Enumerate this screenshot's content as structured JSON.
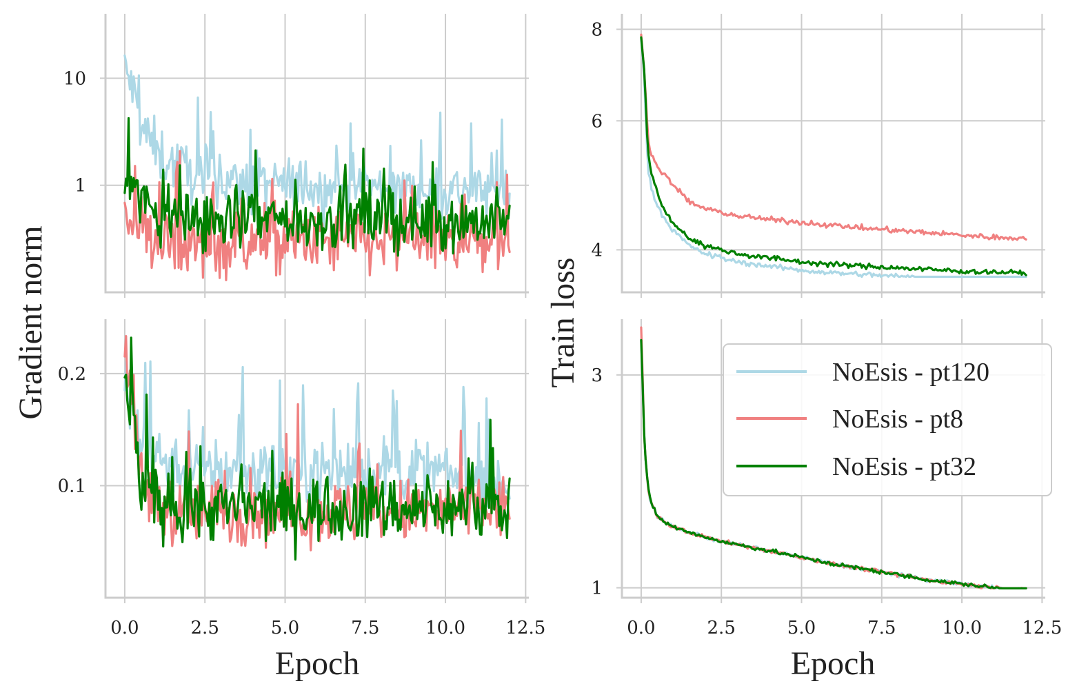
{
  "colors": {
    "pt120": "#add8e6",
    "pt8": "#f08080",
    "pt32": "#008000",
    "grid": "#cccccc",
    "text": "#222222"
  },
  "figure": {
    "ylabel_left": "Gradient norm",
    "ylabel_right": "Train loss",
    "xlabel_left": "Epoch",
    "xlabel_right": "Epoch"
  },
  "legend": {
    "position": "right-middle",
    "entries": [
      {
        "label": "NoEsis - pt120",
        "color": "#add8e6"
      },
      {
        "label": "NoEsis - pt8",
        "color": "#f08080"
      },
      {
        "label": "NoEsis - pt32",
        "color": "#008000"
      }
    ]
  },
  "chart_data": [
    {
      "id": "gradnorm_top",
      "type": "line",
      "title": "",
      "xlabel": "",
      "ylabel": "Gradient norm",
      "yscale": "log",
      "xlim": [
        -0.6,
        12.6
      ],
      "ylim": [
        0.1,
        40
      ],
      "xticks": [
        0,
        2.5,
        5,
        7.5,
        10,
        12.5
      ],
      "xtick_labels": [],
      "yticks": [
        1,
        10
      ],
      "ytick_labels": [
        "1",
        "10"
      ],
      "series": [
        {
          "name": "NoEsis - pt120",
          "color": "#add8e6",
          "x": [
            0,
            0.5,
            1,
            1.5,
            2,
            3,
            4,
            5,
            6,
            7,
            8,
            9,
            10,
            11,
            12
          ],
          "values": [
            12,
            3.5,
            2.0,
            1.6,
            1.3,
            1.1,
            1.0,
            1.0,
            0.95,
            0.95,
            0.95,
            0.9,
            0.9,
            0.9,
            0.9
          ]
        },
        {
          "name": "NoEsis - pt8",
          "color": "#f08080",
          "x": [
            0,
            0.5,
            1,
            1.5,
            2,
            3,
            4,
            5,
            6,
            7,
            8,
            9,
            10,
            11,
            12
          ],
          "values": [
            0.6,
            0.4,
            0.3,
            0.28,
            0.27,
            0.28,
            0.3,
            0.3,
            0.3,
            0.3,
            0.3,
            0.3,
            0.3,
            0.3,
            0.3
          ]
        },
        {
          "name": "NoEsis - pt32",
          "color": "#008000",
          "x": [
            0,
            0.5,
            1,
            1.5,
            2,
            3,
            4,
            5,
            6,
            7,
            8,
            9,
            10,
            11,
            12
          ],
          "values": [
            1.4,
            0.7,
            0.55,
            0.5,
            0.48,
            0.47,
            0.47,
            0.47,
            0.47,
            0.47,
            0.47,
            0.47,
            0.47,
            0.47,
            0.45
          ]
        }
      ]
    },
    {
      "id": "gradnorm_bottom",
      "type": "line",
      "title": "",
      "xlabel": "Epoch",
      "ylabel": "Gradient norm",
      "yscale": "log",
      "xlim": [
        -0.6,
        12.6
      ],
      "ylim": [
        0.05,
        0.28
      ],
      "xticks": [
        0,
        2.5,
        5,
        7.5,
        10,
        12.5
      ],
      "xtick_labels": [
        "0.0",
        "2.5",
        "5.0",
        "7.5",
        "10.0",
        "12.5"
      ],
      "yticks": [
        0.1,
        0.2
      ],
      "ytick_labels": [
        "0.1",
        "0.2"
      ],
      "series": [
        {
          "name": "NoEsis - pt120",
          "color": "#add8e6",
          "x": [
            0,
            0.5,
            1,
            1.5,
            2,
            3,
            4,
            5,
            6,
            7,
            8,
            9,
            10,
            11,
            12
          ],
          "values": [
            0.19,
            0.13,
            0.12,
            0.115,
            0.112,
            0.11,
            0.11,
            0.11,
            0.11,
            0.11,
            0.11,
            0.11,
            0.107,
            0.105,
            0.103
          ]
        },
        {
          "name": "NoEsis - pt8",
          "color": "#f08080",
          "x": [
            0,
            0.5,
            1,
            1.5,
            2,
            3,
            4,
            5,
            6,
            7,
            8,
            9,
            10,
            11,
            12
          ],
          "values": [
            0.23,
            0.1,
            0.09,
            0.086,
            0.085,
            0.085,
            0.085,
            0.085,
            0.085,
            0.085,
            0.085,
            0.085,
            0.085,
            0.086,
            0.087
          ]
        },
        {
          "name": "NoEsis - pt32",
          "color": "#008000",
          "x": [
            0,
            0.5,
            1,
            1.5,
            2,
            3,
            4,
            5,
            6,
            7,
            8,
            9,
            10,
            11,
            12
          ],
          "values": [
            0.2,
            0.1,
            0.09,
            0.088,
            0.087,
            0.087,
            0.087,
            0.087,
            0.087,
            0.087,
            0.087,
            0.087,
            0.087,
            0.087,
            0.088
          ]
        }
      ]
    },
    {
      "id": "trainloss_top",
      "type": "line",
      "title": "",
      "xlabel": "",
      "ylabel": "Train loss",
      "yscale": "log",
      "xlim": [
        -0.6,
        12.6
      ],
      "ylim": [
        3.5,
        8.4
      ],
      "xticks": [
        0,
        2.5,
        5,
        7.5,
        10,
        12.5
      ],
      "xtick_labels": [],
      "yticks": [
        4,
        6,
        8
      ],
      "ytick_labels": [
        "4",
        "6",
        "8"
      ],
      "series": [
        {
          "name": "NoEsis - pt120",
          "color": "#add8e6",
          "x": [
            0,
            0.1,
            0.2,
            0.3,
            0.5,
            0.75,
            1,
            1.5,
            2,
            2.5,
            3,
            4,
            5,
            6,
            7,
            8,
            9,
            10,
            11,
            12
          ],
          "values": [
            7.8,
            6.8,
            5.2,
            4.9,
            4.6,
            4.4,
            4.25,
            4.05,
            3.95,
            3.9,
            3.85,
            3.8,
            3.75,
            3.72,
            3.7,
            3.68,
            3.66,
            3.64,
            3.62,
            3.6
          ]
        },
        {
          "name": "NoEsis - pt8",
          "color": "#f08080",
          "x": [
            0,
            0.1,
            0.2,
            0.3,
            0.5,
            0.75,
            1,
            1.5,
            2,
            2.5,
            3,
            4,
            5,
            6,
            7,
            8,
            9,
            10,
            11,
            12
          ],
          "values": [
            7.9,
            7.0,
            5.8,
            5.4,
            5.2,
            5.05,
            4.9,
            4.65,
            4.55,
            4.5,
            4.45,
            4.4,
            4.36,
            4.32,
            4.28,
            4.25,
            4.22,
            4.19,
            4.16,
            4.15
          ]
        },
        {
          "name": "NoEsis - pt32",
          "color": "#008000",
          "x": [
            0,
            0.1,
            0.2,
            0.3,
            0.5,
            0.75,
            1,
            1.5,
            2,
            2.5,
            3,
            4,
            5,
            6,
            7,
            8,
            9,
            10,
            11,
            12
          ],
          "values": [
            7.8,
            7.0,
            5.5,
            5.1,
            4.8,
            4.5,
            4.35,
            4.15,
            4.05,
            4.0,
            3.95,
            3.9,
            3.85,
            3.82,
            3.8,
            3.78,
            3.76,
            3.74,
            3.73,
            3.72
          ]
        }
      ]
    },
    {
      "id": "trainloss_bottom",
      "type": "line",
      "title": "",
      "xlabel": "Epoch",
      "ylabel": "Train loss",
      "yscale": "log",
      "xlim": [
        -0.6,
        12.6
      ],
      "ylim": [
        0.95,
        4.0
      ],
      "xticks": [
        0,
        2.5,
        5,
        7.5,
        10,
        12.5
      ],
      "xtick_labels": [
        "0.0",
        "2.5",
        "5.0",
        "7.5",
        "10.0",
        "12.5"
      ],
      "yticks": [
        1,
        3
      ],
      "ytick_labels": [
        "1",
        "3"
      ],
      "series": [
        {
          "name": "NoEsis - pt120",
          "color": "#add8e6",
          "x": [
            0,
            0.05,
            0.1,
            0.2,
            0.3,
            0.5,
            0.75,
            1,
            1.5,
            2,
            2.5,
            3,
            4,
            5,
            6,
            7,
            8,
            9,
            10,
            11,
            12
          ],
          "values": [
            3.6,
            2.8,
            2.1,
            1.7,
            1.55,
            1.45,
            1.4,
            1.37,
            1.33,
            1.3,
            1.27,
            1.25,
            1.21,
            1.17,
            1.13,
            1.1,
            1.07,
            1.04,
            1.02,
            1.0,
            0.99
          ]
        },
        {
          "name": "NoEsis - pt8",
          "color": "#f08080",
          "x": [
            0,
            0.05,
            0.1,
            0.2,
            0.3,
            0.5,
            0.75,
            1,
            1.5,
            2,
            2.5,
            3,
            4,
            5,
            6,
            7,
            8,
            9,
            10,
            11,
            12
          ],
          "values": [
            3.8,
            2.9,
            2.1,
            1.7,
            1.55,
            1.45,
            1.4,
            1.37,
            1.33,
            1.3,
            1.27,
            1.25,
            1.21,
            1.17,
            1.13,
            1.1,
            1.07,
            1.04,
            1.02,
            1.0,
            0.99
          ]
        },
        {
          "name": "NoEsis - pt32",
          "color": "#008000",
          "x": [
            0,
            0.05,
            0.1,
            0.2,
            0.3,
            0.5,
            0.75,
            1,
            1.5,
            2,
            2.5,
            3,
            4,
            5,
            6,
            7,
            8,
            9,
            10,
            11,
            12
          ],
          "values": [
            3.6,
            2.8,
            2.1,
            1.7,
            1.55,
            1.45,
            1.4,
            1.37,
            1.33,
            1.3,
            1.27,
            1.25,
            1.21,
            1.17,
            1.13,
            1.1,
            1.07,
            1.04,
            1.02,
            1.0,
            0.98
          ]
        }
      ]
    }
  ]
}
